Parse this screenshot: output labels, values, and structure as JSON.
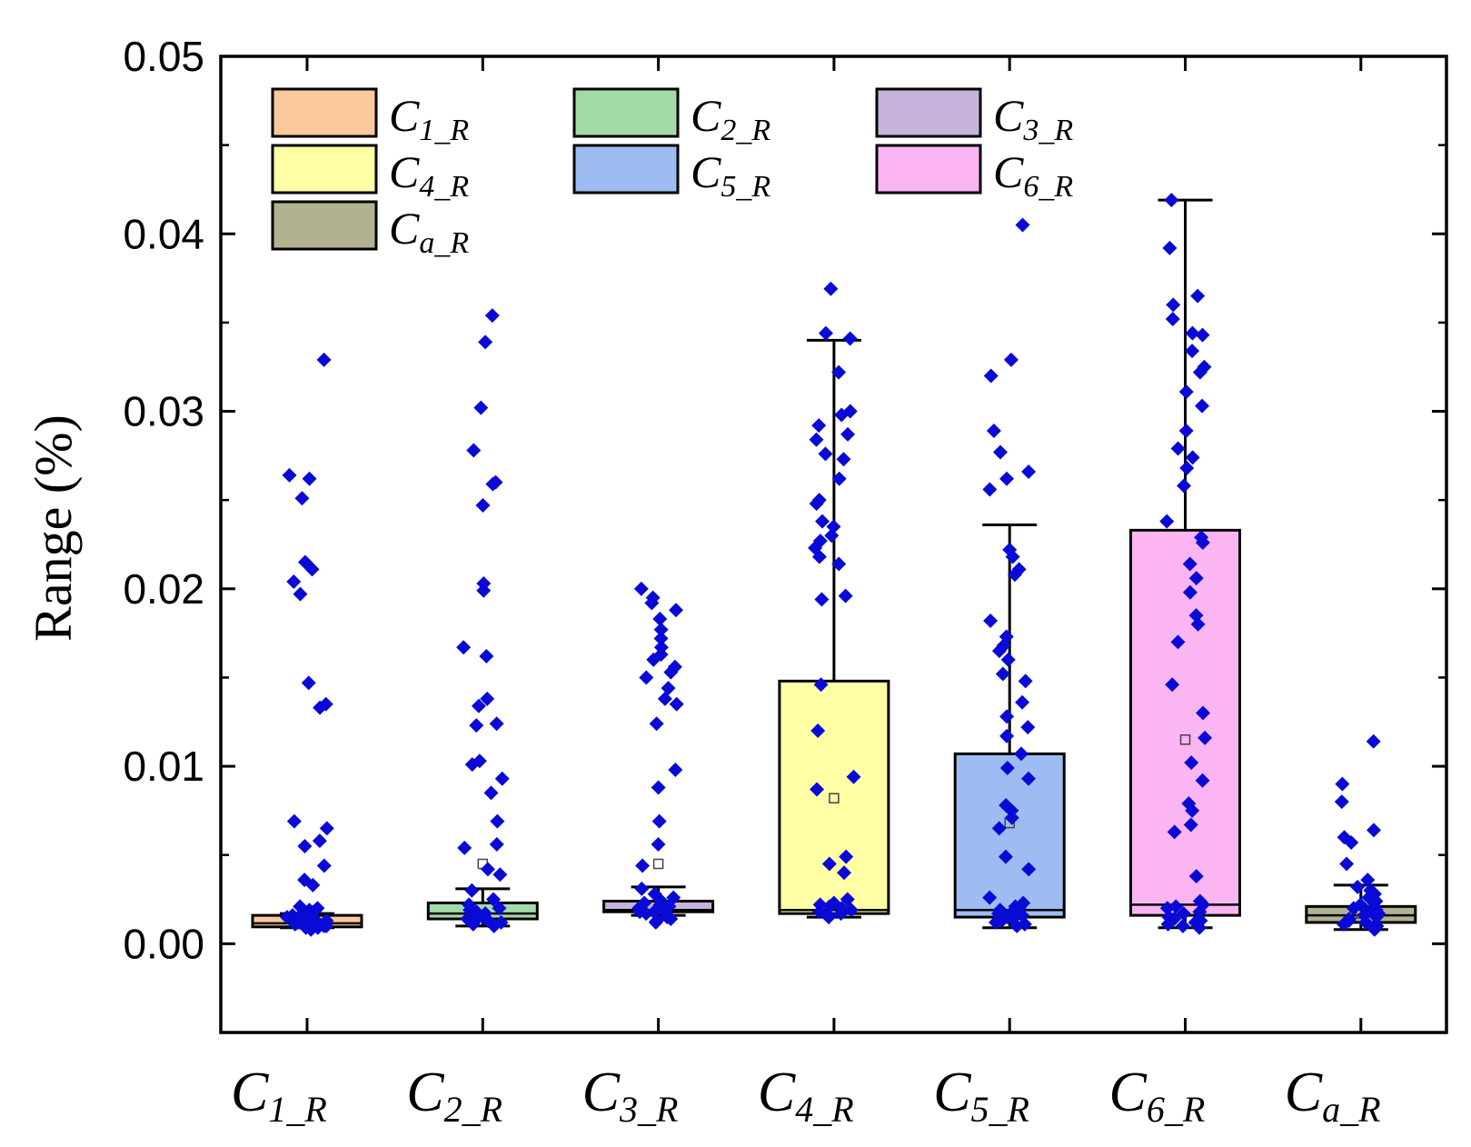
{
  "chart_data": {
    "type": "box",
    "title": "",
    "xlabel": "",
    "ylabel": "Range (%)",
    "ylim": [
      -0.005,
      0.05
    ],
    "yticks": [
      "0.00",
      "0.01",
      "0.02",
      "0.03",
      "0.04",
      "0.05"
    ],
    "categories": [
      {
        "main": "C",
        "sub": "1_R"
      },
      {
        "main": "C",
        "sub": "2_R"
      },
      {
        "main": "C",
        "sub": "3_R"
      },
      {
        "main": "C",
        "sub": "4_R"
      },
      {
        "main": "C",
        "sub": "5_R"
      },
      {
        "main": "C",
        "sub": "6_R"
      },
      {
        "main": "C",
        "sub": "a_R"
      }
    ],
    "colors": [
      "#f9c89b",
      "#a3dba8",
      "#c7b3d9",
      "#ffffa6",
      "#9dbcf2",
      "#fbb5f3",
      "#b2b290"
    ],
    "point_color": "#0a0ad6",
    "legend": {
      "position": "top-left",
      "entries": [
        {
          "main": "C",
          "sub": "1_R"
        },
        {
          "main": "C",
          "sub": "2_R"
        },
        {
          "main": "C",
          "sub": "3_R"
        },
        {
          "main": "C",
          "sub": "4_R"
        },
        {
          "main": "C",
          "sub": "5_R"
        },
        {
          "main": "C",
          "sub": "6_R"
        },
        {
          "main": "C",
          "sub": "a_R"
        }
      ]
    },
    "boxes": [
      {
        "q1": 0.00095,
        "median": 0.00115,
        "q3": 0.0016,
        "whisker_low": 0.0009,
        "whisker_high": 0.0017,
        "mean": 0.0012
      },
      {
        "q1": 0.0014,
        "median": 0.0017,
        "q3": 0.0023,
        "whisker_low": 0.001,
        "whisker_high": 0.0031,
        "mean": 0.0045
      },
      {
        "q1": 0.0018,
        "median": 0.0019,
        "q3": 0.0024,
        "whisker_low": 0.0016,
        "whisker_high": 0.0032,
        "mean": 0.0045
      },
      {
        "q1": 0.0017,
        "median": 0.0019,
        "q3": 0.0148,
        "whisker_low": 0.0015,
        "whisker_high": 0.034,
        "mean": 0.0082
      },
      {
        "q1": 0.0015,
        "median": 0.0019,
        "q3": 0.0107,
        "whisker_low": 0.0009,
        "whisker_high": 0.0236,
        "mean": 0.0068
      },
      {
        "q1": 0.0016,
        "median": 0.0022,
        "q3": 0.0233,
        "whisker_low": 0.0009,
        "whisker_high": 0.0419,
        "mean": 0.0115
      },
      {
        "q1": 0.0012,
        "median": 0.0016,
        "q3": 0.0021,
        "whisker_low": 0.0008,
        "whisker_high": 0.0033,
        "mean": 0.0017
      }
    ],
    "points": [
      [
        0.0329,
        0.0264,
        0.0262,
        0.0251,
        0.0215,
        0.0211,
        0.0204,
        0.0197,
        0.0147,
        0.0135,
        0.0133,
        0.0069,
        0.0065,
        0.0058,
        0.0055,
        0.0044,
        0.0036,
        0.0033,
        0.0021,
        0.002,
        0.0019,
        0.0018,
        0.0017,
        0.0016,
        0.0016,
        0.0015,
        0.0015,
        0.0014,
        0.0014,
        0.0013,
        0.0013,
        0.0012,
        0.0012,
        0.0011,
        0.0011,
        0.001,
        0.001,
        0.0009,
        0.0009,
        0.0008
      ],
      [
        0.0354,
        0.0339,
        0.0302,
        0.0278,
        0.026,
        0.0259,
        0.0247,
        0.0203,
        0.0199,
        0.0167,
        0.0162,
        0.0138,
        0.0134,
        0.0124,
        0.0123,
        0.0103,
        0.0101,
        0.0093,
        0.0085,
        0.0069,
        0.0056,
        0.0054,
        0.0042,
        0.0039,
        0.003,
        0.0025,
        0.0022,
        0.002,
        0.0019,
        0.0018,
        0.0017,
        0.0016,
        0.0015,
        0.0014,
        0.0014,
        0.0013,
        0.0012,
        0.0012,
        0.0011,
        0.001
      ],
      [
        0.02,
        0.0195,
        0.0192,
        0.0188,
        0.0183,
        0.0177,
        0.0172,
        0.0167,
        0.0163,
        0.016,
        0.0156,
        0.0153,
        0.015,
        0.0144,
        0.0138,
        0.0135,
        0.0124,
        0.0098,
        0.0088,
        0.0069,
        0.0056,
        0.0044,
        0.0031,
        0.0028,
        0.0026,
        0.0024,
        0.0023,
        0.0022,
        0.0021,
        0.002,
        0.0019,
        0.0018,
        0.0018,
        0.0017,
        0.0016,
        0.0015,
        0.0014,
        0.0013,
        0.0012
      ],
      [
        0.0369,
        0.0344,
        0.0341,
        0.0322,
        0.03,
        0.0298,
        0.0292,
        0.0287,
        0.0284,
        0.0276,
        0.0273,
        0.0262,
        0.025,
        0.0248,
        0.0238,
        0.0235,
        0.023,
        0.0227,
        0.0223,
        0.0218,
        0.0214,
        0.0196,
        0.0194,
        0.0146,
        0.012,
        0.0094,
        0.0087,
        0.0049,
        0.0045,
        0.004,
        0.0025,
        0.0023,
        0.0022,
        0.0021,
        0.002,
        0.0019,
        0.0018,
        0.0017,
        0.0016,
        0.0015
      ],
      [
        0.0405,
        0.0329,
        0.032,
        0.0289,
        0.0277,
        0.0266,
        0.0262,
        0.0256,
        0.0222,
        0.0218,
        0.0211,
        0.0208,
        0.0182,
        0.0173,
        0.0168,
        0.0165,
        0.016,
        0.0152,
        0.0148,
        0.0136,
        0.0128,
        0.0122,
        0.0117,
        0.0107,
        0.0099,
        0.0093,
        0.0078,
        0.0075,
        0.0071,
        0.0065,
        0.0049,
        0.0042,
        0.0026,
        0.0023,
        0.0021,
        0.002,
        0.0019,
        0.0018,
        0.0017,
        0.0016,
        0.0015,
        0.0014,
        0.0013,
        0.0012,
        0.0011,
        0.001
      ],
      [
        0.0419,
        0.0392,
        0.0365,
        0.036,
        0.0352,
        0.0344,
        0.0343,
        0.0334,
        0.0325,
        0.0322,
        0.0311,
        0.0303,
        0.0289,
        0.0279,
        0.0274,
        0.0268,
        0.0258,
        0.0238,
        0.0229,
        0.0226,
        0.0214,
        0.0206,
        0.0198,
        0.0185,
        0.018,
        0.017,
        0.0146,
        0.013,
        0.0116,
        0.0102,
        0.0092,
        0.0079,
        0.0075,
        0.0067,
        0.0063,
        0.0038,
        0.0024,
        0.0022,
        0.0021,
        0.002,
        0.0018,
        0.0017,
        0.0015,
        0.0014,
        0.0013,
        0.0012,
        0.0011,
        0.001,
        0.0009
      ],
      [
        0.0114,
        0.009,
        0.008,
        0.0064,
        0.006,
        0.0057,
        0.0045,
        0.0036,
        0.0032,
        0.003,
        0.0028,
        0.0026,
        0.0024,
        0.0022,
        0.0021,
        0.002,
        0.0019,
        0.0018,
        0.0017,
        0.0016,
        0.0015,
        0.0014,
        0.0013,
        0.0012,
        0.0011,
        0.001,
        0.0009,
        0.0008
      ]
    ]
  }
}
